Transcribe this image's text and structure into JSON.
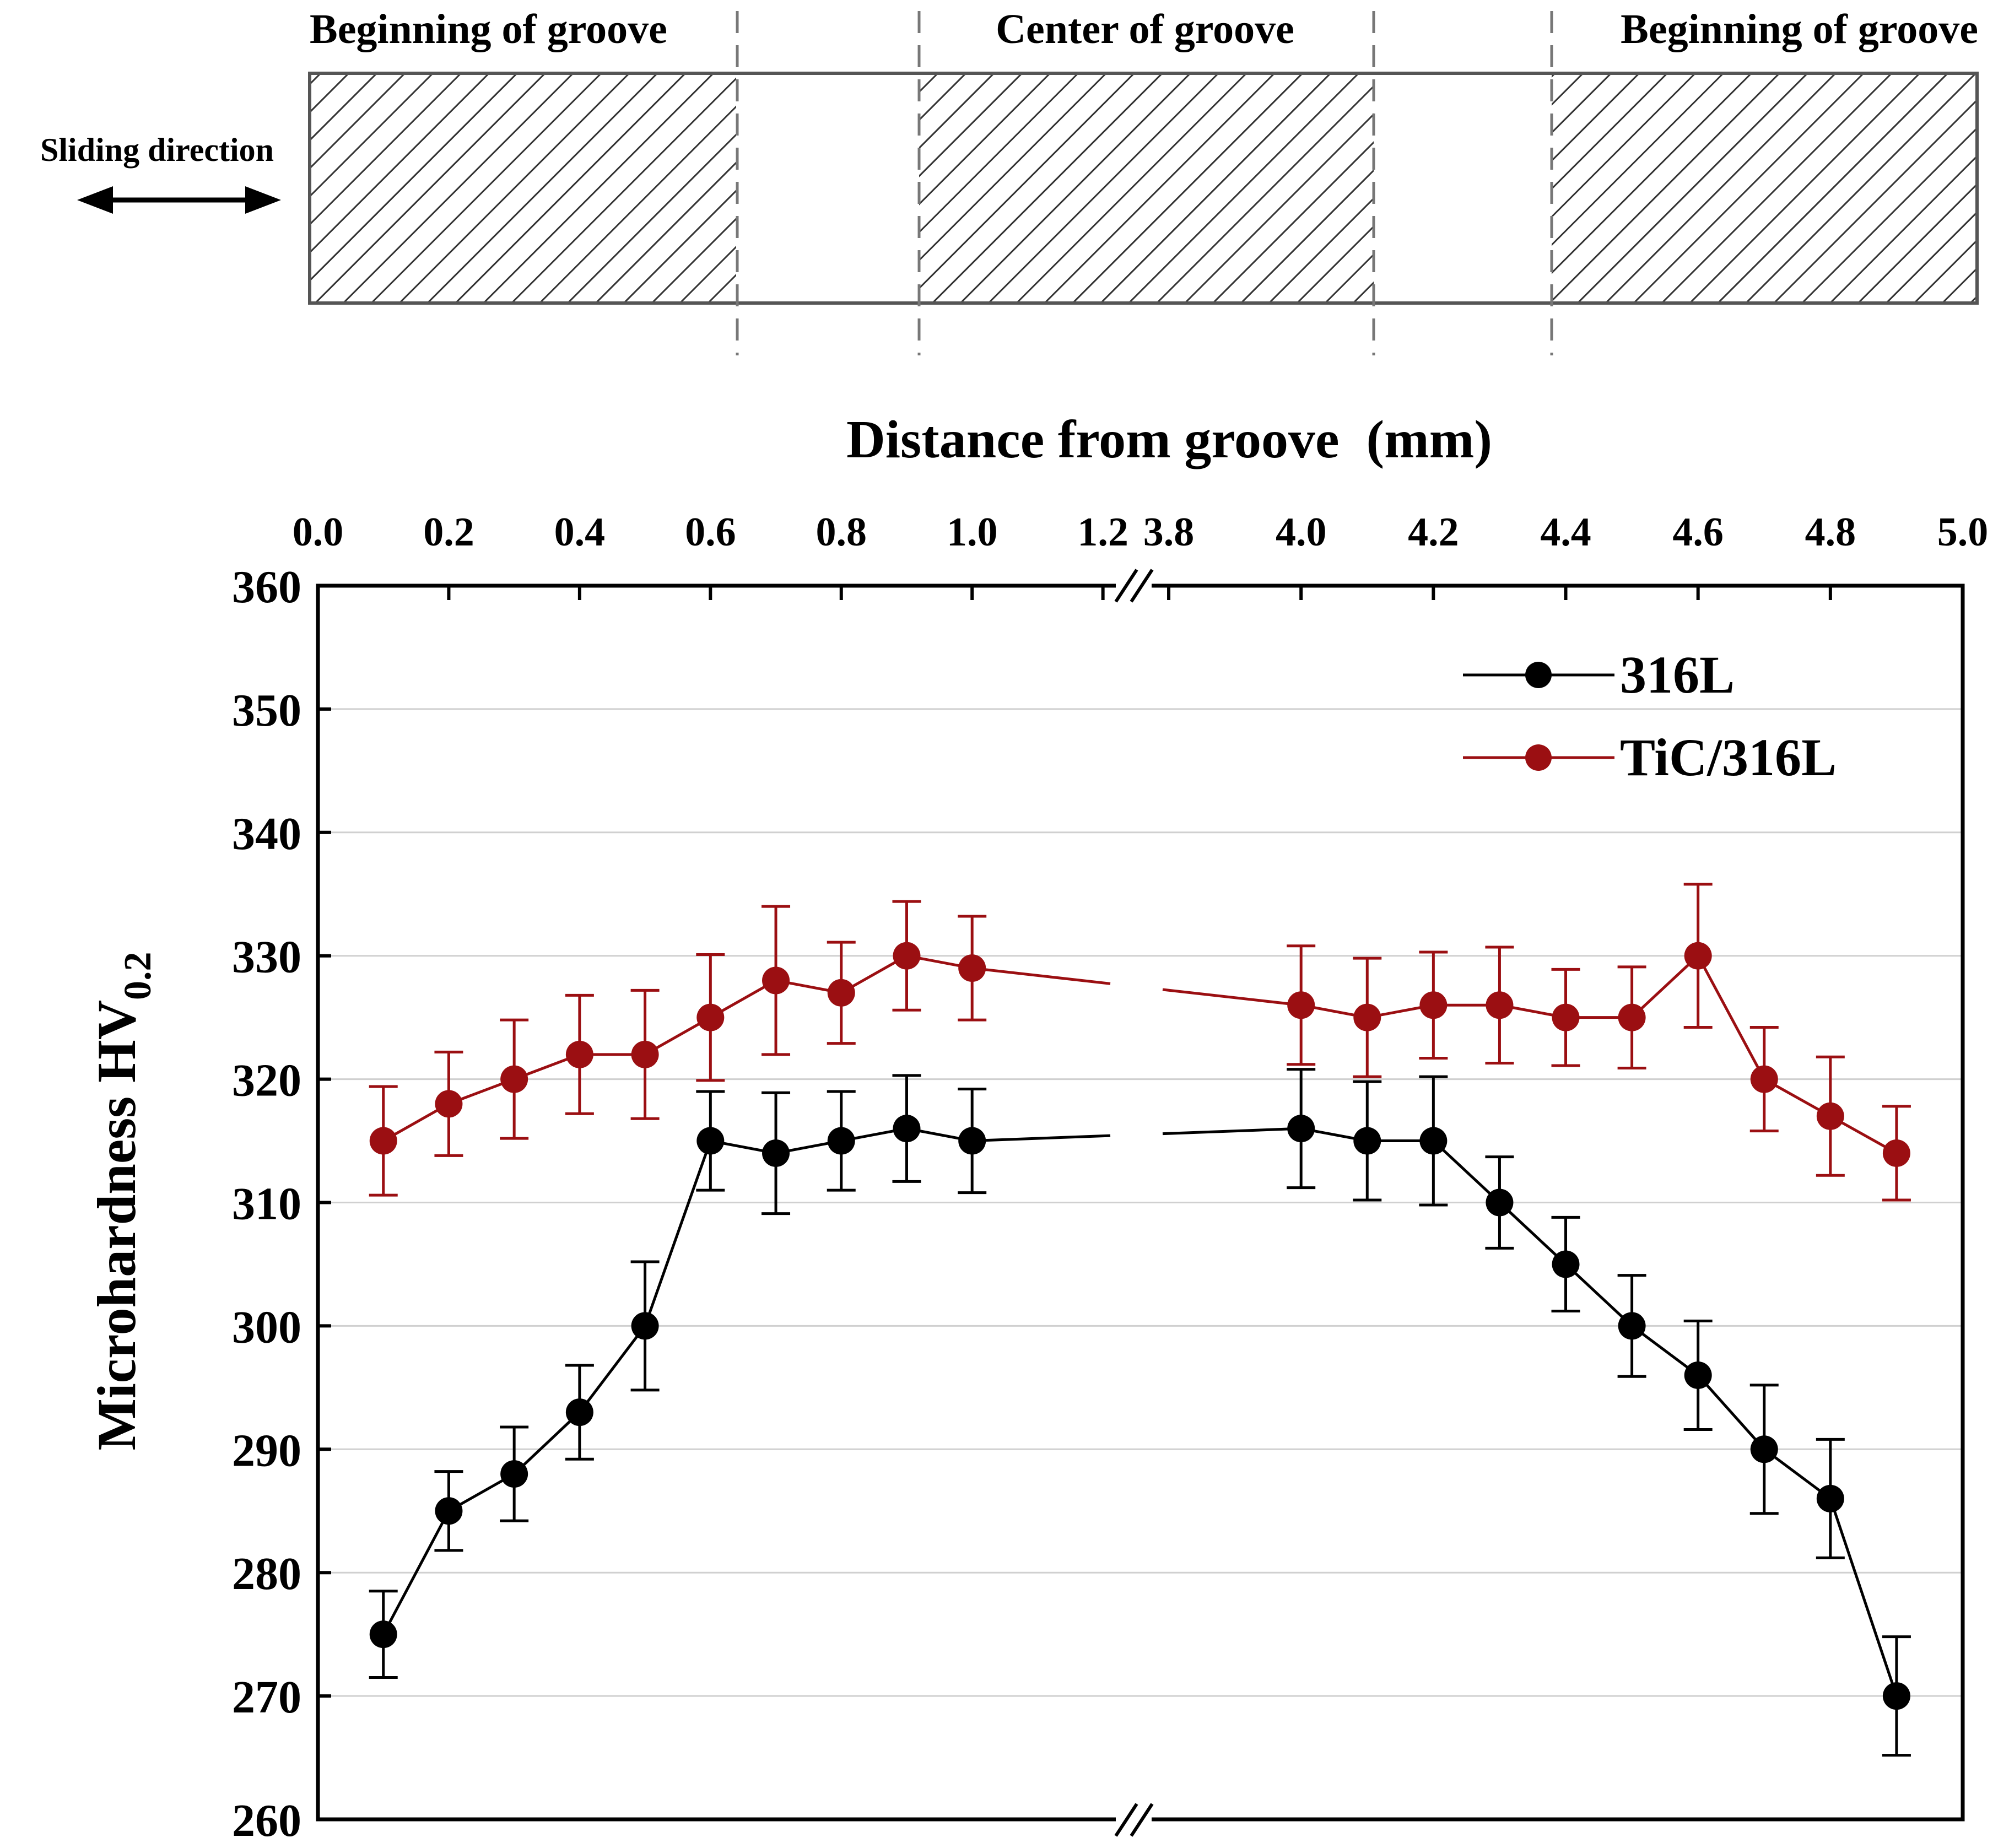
{
  "schematic": {
    "labels": {
      "left_region": "Beginning of groove",
      "center_region": "Center of groove",
      "right_region": "Beginning of groove",
      "sliding_direction": "Sliding direction"
    },
    "sliding_arrow_icon": "double-headed-arrow-icon"
  },
  "chart_data": {
    "type": "line",
    "xlabel": "Distance from groove  (mm)",
    "ylabel": "Microhardness HV",
    "ylabel_subscript": "0.2",
    "ylim": [
      260,
      360
    ],
    "yticks": [
      260,
      270,
      280,
      290,
      300,
      310,
      320,
      330,
      340,
      350,
      360
    ],
    "x_axis_break": {
      "segment1_range": [
        0.0,
        1.25
      ],
      "segment2_range": [
        3.75,
        5.0
      ]
    },
    "xtick_labels": [
      "0.0",
      "0.2",
      "0.4",
      "0.6",
      "0.8",
      "1.0",
      "1.2",
      "3.8",
      "4.0",
      "4.2",
      "4.4",
      "4.6",
      "4.8",
      "5.0"
    ],
    "xtick_values": [
      0.0,
      0.2,
      0.4,
      0.6,
      0.8,
      1.0,
      1.2,
      3.8,
      4.0,
      4.2,
      4.4,
      4.6,
      4.8,
      5.0
    ],
    "grid": "horizontal",
    "legend_position": "top-right",
    "x": [
      0.1,
      0.2,
      0.3,
      0.4,
      0.5,
      0.6,
      0.7,
      0.8,
      0.9,
      1.0,
      4.0,
      4.1,
      4.2,
      4.3,
      4.4,
      4.5,
      4.6,
      4.7,
      4.8,
      4.9
    ],
    "series": [
      {
        "name": "316L",
        "color": "#000000",
        "values": [
          275,
          285,
          288,
          293,
          300,
          315,
          314,
          315,
          316,
          315,
          316,
          315,
          315,
          310,
          305,
          300,
          296,
          290,
          286,
          270
        ],
        "errors": [
          3.5,
          3.2,
          3.8,
          3.8,
          5.2,
          4.0,
          4.9,
          4.0,
          4.3,
          4.2,
          4.8,
          4.8,
          5.2,
          3.7,
          3.8,
          4.1,
          4.4,
          5.2,
          4.8,
          4.8
        ]
      },
      {
        "name": "TiC/316L",
        "color": "#9b0f12",
        "values": [
          315,
          318,
          320,
          322,
          322,
          325,
          328,
          327,
          330,
          329,
          326,
          325,
          326,
          326,
          325,
          325,
          330,
          320,
          317,
          314
        ],
        "errors": [
          4.4,
          4.2,
          4.8,
          4.8,
          5.2,
          5.1,
          6.0,
          4.1,
          4.4,
          4.2,
          4.8,
          4.8,
          4.3,
          4.7,
          3.9,
          4.1,
          5.8,
          4.2,
          4.8,
          3.8
        ]
      }
    ]
  }
}
